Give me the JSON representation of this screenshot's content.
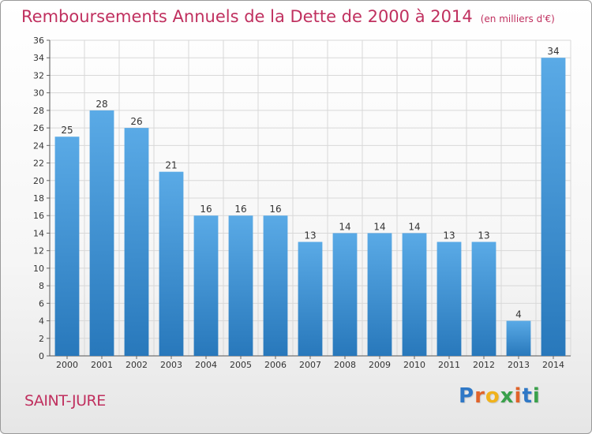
{
  "header": {
    "title": "Remboursements Annuels de la Dette de 2000 à 2014",
    "unit": "(en milliers d'€)"
  },
  "footer": {
    "commune": "SAINT-JURE",
    "logo_letters": [
      {
        "ch": "P",
        "color": "#2f78c6"
      },
      {
        "ch": "r",
        "color": "#e0632a"
      },
      {
        "ch": "o",
        "color": "#f0b21c"
      },
      {
        "ch": "x",
        "color": "#3aa14b"
      },
      {
        "ch": "i",
        "color": "#e0632a"
      },
      {
        "ch": "t",
        "color": "#2f78c6"
      },
      {
        "ch": "i",
        "color": "#3aa14b"
      }
    ]
  },
  "colors": {
    "bar_light": "#5aaae6",
    "bar_dark": "#2878bb",
    "title": "#c0305f",
    "grid": "#d8d8d8"
  },
  "chart_data": {
    "type": "bar",
    "categories": [
      "2000",
      "2001",
      "2002",
      "2003",
      "2004",
      "2005",
      "2006",
      "2007",
      "2008",
      "2009",
      "2010",
      "2011",
      "2012",
      "2013",
      "2014"
    ],
    "values": [
      25,
      28,
      26,
      21,
      16,
      16,
      16,
      13,
      14,
      14,
      14,
      13,
      13,
      4,
      34
    ],
    "ylim": [
      0,
      36
    ],
    "yticks": [
      0,
      2,
      4,
      6,
      8,
      10,
      12,
      14,
      16,
      18,
      20,
      22,
      24,
      26,
      28,
      30,
      32,
      34,
      36
    ],
    "grid": true,
    "data_labels": true
  }
}
